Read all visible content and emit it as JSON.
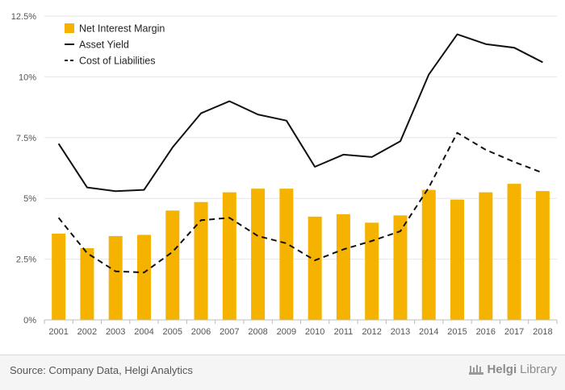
{
  "colors": {
    "bar": "#F5B300",
    "asset_yield": "#111111",
    "cost_of_liabilities": "#111111",
    "grid": "#e6e6e6"
  },
  "chart_data": {
    "type": "bar",
    "title": "",
    "xlabel": "",
    "ylabel": "",
    "categories": [
      "2001",
      "2002",
      "2003",
      "2004",
      "2005",
      "2006",
      "2007",
      "2008",
      "2009",
      "2010",
      "2011",
      "2012",
      "2013",
      "2014",
      "2015",
      "2016",
      "2017",
      "2018"
    ],
    "ylim": [
      0,
      12.5
    ],
    "yticks": [
      0,
      2.5,
      5,
      7.5,
      10,
      12.5
    ],
    "ytick_labels": [
      "0%",
      "2.5%",
      "5%",
      "7.5%",
      "10%",
      "12.5%"
    ],
    "grid": true,
    "legend_position": "top-left",
    "series": [
      {
        "name": "Net Interest Margin",
        "type": "bar",
        "values": [
          3.55,
          2.95,
          3.45,
          3.5,
          4.5,
          4.85,
          5.25,
          5.4,
          5.4,
          4.25,
          4.35,
          4.0,
          4.3,
          5.35,
          4.95,
          5.25,
          5.6,
          5.3
        ]
      },
      {
        "name": "Asset Yield",
        "type": "line",
        "style": "solid",
        "values": [
          7.25,
          5.45,
          5.3,
          5.35,
          7.1,
          8.5,
          9.0,
          8.45,
          8.2,
          6.3,
          6.8,
          6.7,
          7.35,
          10.1,
          11.75,
          11.35,
          11.2,
          10.6
        ]
      },
      {
        "name": "Cost of Liabilities",
        "type": "line",
        "style": "dashed",
        "values": [
          4.2,
          2.75,
          2.0,
          1.95,
          2.8,
          4.1,
          4.2,
          3.45,
          3.15,
          2.45,
          2.9,
          3.25,
          3.65,
          5.45,
          7.7,
          7.0,
          6.5,
          6.05
        ]
      }
    ]
  },
  "footer": {
    "source": "Source: Company Data, Helgi Analytics",
    "brand_prefix": "Helgi",
    "brand_suffix": "Library"
  }
}
